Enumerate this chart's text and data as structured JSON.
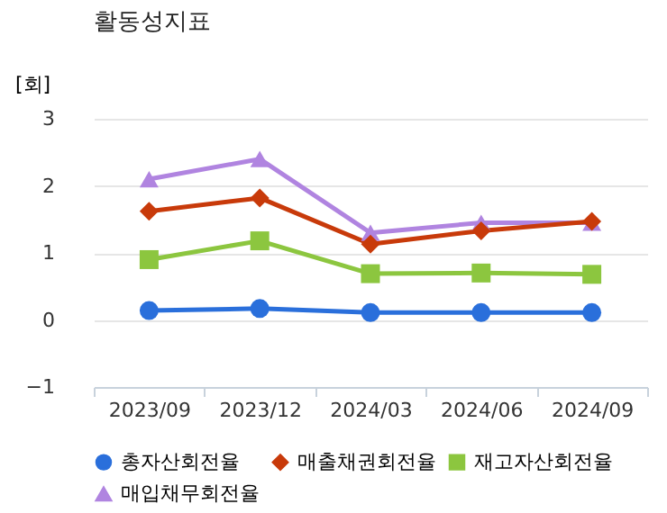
{
  "chart_data": {
    "type": "line",
    "title": "활동성지표",
    "ylabel": "[회]",
    "categories": [
      "2023/09",
      "2023/12",
      "2024/03",
      "2024/06",
      "2024/09"
    ],
    "series": [
      {
        "name": "총자산회전율",
        "color": "#2a6fdb",
        "marker": "circle",
        "values": [
          0.14,
          0.17,
          0.11,
          0.11,
          0.11
        ]
      },
      {
        "name": "매출채권회전율",
        "color": "#c83a0a",
        "marker": "diamond",
        "values": [
          1.62,
          1.82,
          1.13,
          1.33,
          1.47
        ]
      },
      {
        "name": "재고자산회전율",
        "color": "#8cc63f",
        "marker": "square",
        "values": [
          0.9,
          1.18,
          0.69,
          0.7,
          0.68
        ]
      },
      {
        "name": "매입채무회전율",
        "color": "#b084e0",
        "marker": "triangle",
        "values": [
          2.1,
          2.4,
          1.3,
          1.45,
          1.45
        ]
      }
    ],
    "ylim": [
      -1,
      3
    ],
    "yticks": [
      -1,
      0,
      1,
      2,
      3
    ],
    "grid": "y",
    "legend": "bottom",
    "line_style": "solid"
  }
}
